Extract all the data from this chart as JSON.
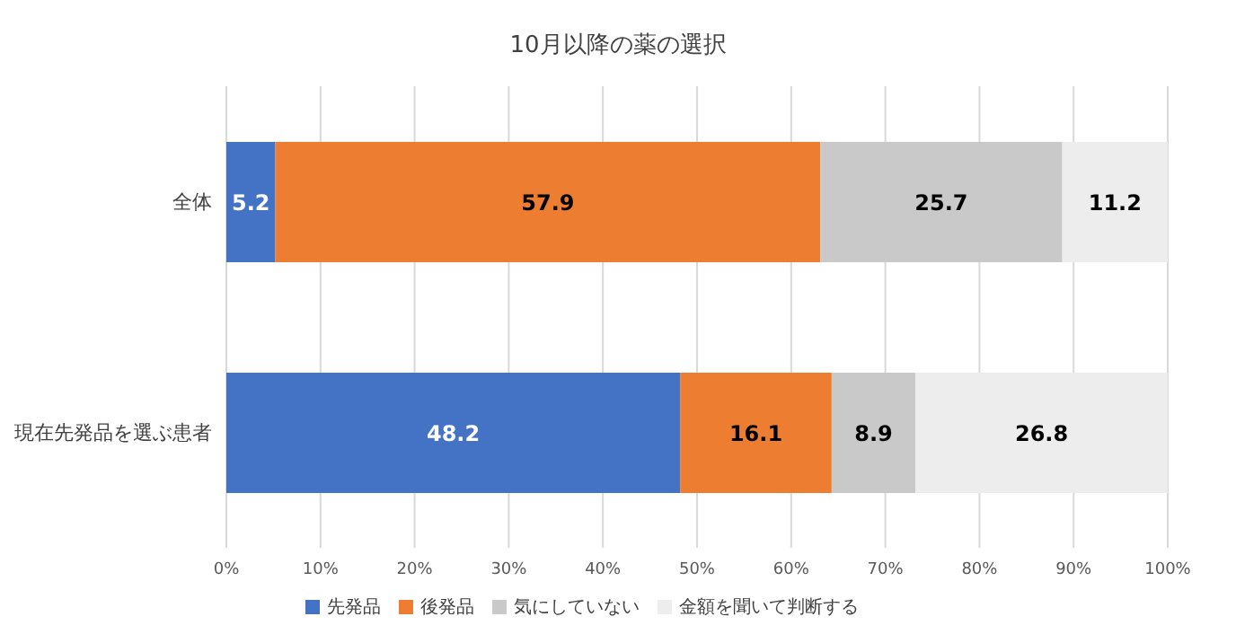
{
  "chart_data": {
    "type": "bar",
    "title": "10月以降の薬の選択",
    "orientation": "horizontal",
    "stacked": true,
    "categories": [
      "全体",
      "現在先発品を選ぶ患者"
    ],
    "series": [
      {
        "name": "先発品",
        "color": "#4472c4",
        "values": [
          5.2,
          48.2
        ]
      },
      {
        "name": "後発品",
        "color": "#ed7d31",
        "values": [
          57.9,
          16.1
        ]
      },
      {
        "name": "気にしていない",
        "color": "#c9c9c9",
        "values": [
          25.7,
          8.9
        ]
      },
      {
        "name": "金額を聞いて判断する",
        "color": "#ededed",
        "values": [
          11.2,
          26.8
        ]
      }
    ],
    "xlim": [
      0,
      100
    ],
    "xticks": [
      {
        "value": 0,
        "label": "0%"
      },
      {
        "value": 10,
        "label": "10%"
      },
      {
        "value": 20,
        "label": "20%"
      },
      {
        "value": 30,
        "label": "30%"
      },
      {
        "value": 40,
        "label": "40%"
      },
      {
        "value": 50,
        "label": "50%"
      },
      {
        "value": 60,
        "label": "60%"
      },
      {
        "value": 70,
        "label": "70%"
      },
      {
        "value": 80,
        "label": "80%"
      },
      {
        "value": 90,
        "label": "90%"
      },
      {
        "value": 100,
        "label": "100%"
      }
    ],
    "grid": "x",
    "legend": "bottom",
    "data_labels": true
  }
}
